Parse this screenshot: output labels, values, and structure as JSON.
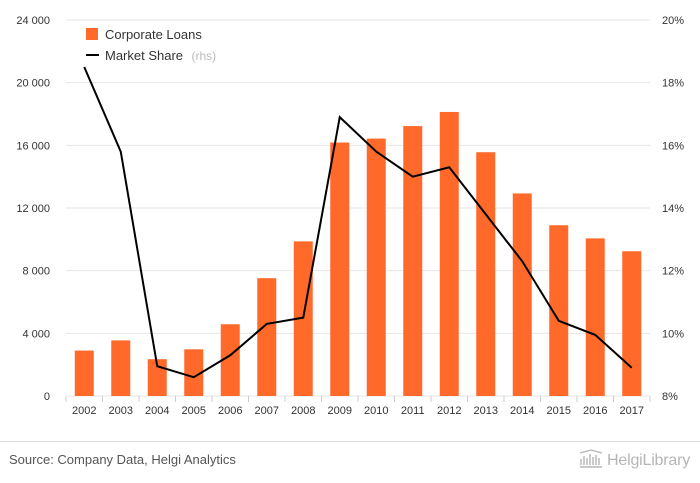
{
  "colors": {
    "bar": "#ff6a2b",
    "line": "#000000",
    "grid": "#e6e6e6",
    "axis_text": "#333333",
    "legend_suffix": "#bbbbbb",
    "brand": "#b5b5b5"
  },
  "footer": {
    "source": "Source: Company Data, Helgi Analytics",
    "brand_name": "HelgiLibrary",
    "brand_icon": "library-building-icon"
  },
  "chart_data": {
    "type": "bar",
    "categories": [
      "2002",
      "2003",
      "2004",
      "2005",
      "2006",
      "2007",
      "2008",
      "2009",
      "2010",
      "2011",
      "2012",
      "2013",
      "2014",
      "2015",
      "2016",
      "2017"
    ],
    "series": [
      {
        "name": "Corporate Loans",
        "type": "bar",
        "axis": "left",
        "values": [
          2900,
          3550,
          2350,
          2980,
          4580,
          7520,
          9870,
          16180,
          16430,
          17230,
          18130,
          15560,
          12930,
          10900,
          10060,
          9240
        ]
      },
      {
        "name": "Market Share",
        "name_suffix": "(rhs)",
        "type": "line",
        "axis": "right",
        "values": [
          18.5,
          15.8,
          8.95,
          8.6,
          9.3,
          10.3,
          10.5,
          16.9,
          15.8,
          15.0,
          15.3,
          13.8,
          12.3,
          10.4,
          9.95,
          8.9
        ]
      }
    ],
    "y_left": {
      "min": 0,
      "max": 24000,
      "ticks": [
        0,
        4000,
        8000,
        12000,
        16000,
        20000,
        24000
      ],
      "tick_labels": [
        "0",
        "4 000",
        "8 000",
        "12 000",
        "16 000",
        "20 000",
        "24 000"
      ]
    },
    "y_right": {
      "min": 8,
      "max": 20,
      "ticks": [
        8,
        10,
        12,
        14,
        16,
        18,
        20
      ],
      "tick_labels": [
        "8%",
        "10%",
        "12%",
        "14%",
        "16%",
        "18%",
        "20%"
      ]
    },
    "grid": true,
    "legend_position": "top-left"
  }
}
